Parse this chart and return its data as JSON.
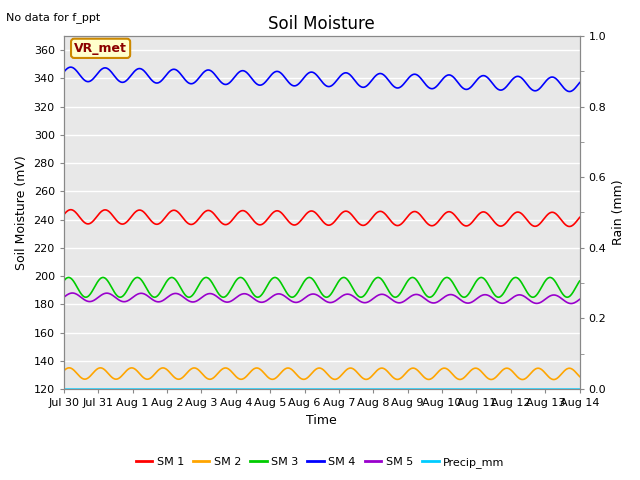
{
  "title": "Soil Moisture",
  "top_left_text": "No data for f_ppt",
  "annotation_text": "VR_met",
  "xlabel": "Time",
  "ylabel_left": "Soil Moisture (mV)",
  "ylabel_right": "Rain (mm)",
  "ylim_left": [
    120,
    370
  ],
  "ylim_right": [
    0.0,
    1.0
  ],
  "yticks_left": [
    120,
    140,
    160,
    180,
    200,
    220,
    240,
    260,
    280,
    300,
    320,
    340,
    360
  ],
  "yticks_right": [
    0.0,
    0.2,
    0.4,
    0.6,
    0.8,
    1.0
  ],
  "num_days": 15,
  "series": {
    "SM1": {
      "color": "#ff0000",
      "mean": 242,
      "amp": 5,
      "freq": 1.0,
      "phase": 0.3,
      "drift": -0.13
    },
    "SM2": {
      "color": "#ffa500",
      "mean": 131,
      "amp": 4,
      "freq": 1.1,
      "phase": 0.5,
      "drift": -0.02
    },
    "SM3": {
      "color": "#00cc00",
      "mean": 192,
      "amp": 7,
      "freq": 1.0,
      "phase": 0.7,
      "drift": 0.0
    },
    "SM4": {
      "color": "#0000ff",
      "mean": 343,
      "amp": 5,
      "freq": 1.0,
      "phase": 0.3,
      "drift": -0.5
    },
    "SM5": {
      "color": "#9900cc",
      "mean": 185,
      "amp": 3,
      "freq": 1.0,
      "phase": 0.0,
      "drift": -0.1
    },
    "Precip_mm": {
      "color": "#00ccff",
      "mean": 120,
      "amp": 0,
      "freq": 0,
      "phase": 0,
      "drift": 0
    }
  },
  "xtick_labels": [
    "Jul 30",
    "Jul 31",
    "Aug 1",
    "Aug 2",
    "Aug 3",
    "Aug 4",
    "Aug 5",
    "Aug 6",
    "Aug 7",
    "Aug 8",
    "Aug 9",
    "Aug 10",
    "Aug 11",
    "Aug 12",
    "Aug 13",
    "Aug 14"
  ],
  "legend_labels": [
    "SM 1",
    "SM 2",
    "SM 3",
    "SM 4",
    "SM 5",
    "Precip_mm"
  ],
  "legend_colors": [
    "#ff0000",
    "#ffa500",
    "#00cc00",
    "#0000ff",
    "#9900cc",
    "#00ccff"
  ],
  "bg_color": "#e8e8e8",
  "grid_color": "#ffffff",
  "annotation_bg": "#ffffcc",
  "annotation_border": "#cc8800",
  "fig_width": 6.4,
  "fig_height": 4.8,
  "fig_dpi": 100
}
